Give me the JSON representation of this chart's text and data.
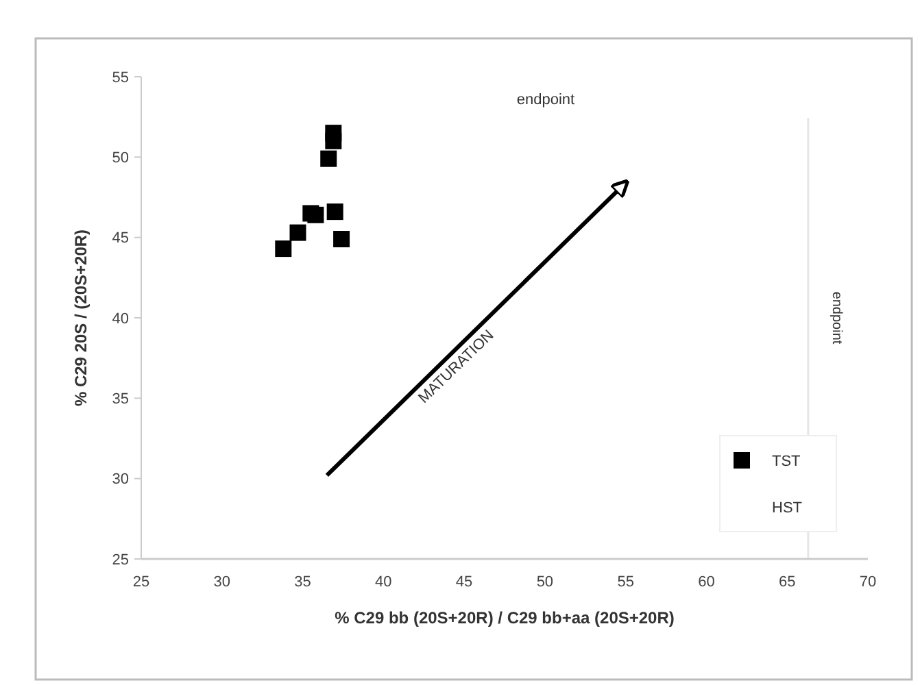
{
  "chart_data": {
    "type": "scatter",
    "xlabel": "% C29 bb (20S+20R) / C29 bb+aa (20S+20R)",
    "ylabel": "% C29 20S / (20S+20R)",
    "xlim": [
      25,
      70
    ],
    "xticks": [
      25,
      30,
      35,
      40,
      45,
      50,
      55,
      60,
      65,
      70
    ],
    "ylim": [
      25,
      55
    ],
    "yticks": [
      25,
      30,
      35,
      40,
      45,
      50,
      55
    ],
    "grid": false,
    "legend": "bottom right",
    "series": [
      {
        "name": "TST",
        "color": "#000000",
        "marker": "square",
        "x": [
          33.8,
          34.7,
          35.5,
          35.8,
          37.0,
          37.4,
          36.6,
          36.9,
          36.9
        ],
        "values": [
          44.3,
          45.3,
          46.5,
          46.4,
          46.6,
          44.9,
          49.9,
          51.0,
          51.5
        ]
      },
      {
        "name": "HST"
      },
      {
        "type": "line",
        "color": "#000000",
        "x": [
          36.5,
          55.0
        ],
        "values": [
          30.2,
          48.4
        ]
      }
    ],
    "ref_lines": [
      {
        "axis": "x",
        "value": 66.3,
        "color": "#e6e6e6",
        "label": "endpoint"
      }
    ],
    "annotations": [
      "endpoint",
      "MATURATION"
    ]
  }
}
